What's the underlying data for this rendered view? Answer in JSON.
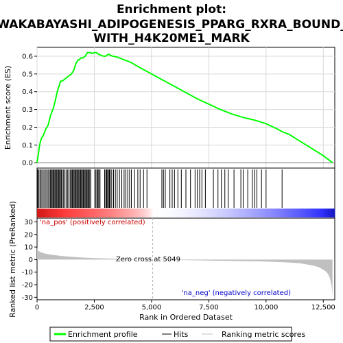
{
  "chart_data": {
    "type": "line",
    "title_lines": [
      "Enrichment plot:",
      "WAKABAYASHI_ADIPOGENESIS_PPARG_RXRA_BOUND_",
      "WITH_H4K20ME1_MARK"
    ],
    "xlabel": "Rank in Ordered Dataset",
    "xlim": [
      0,
      13000
    ],
    "x_ticks": [
      0,
      2500,
      5000,
      7500,
      10000,
      12500
    ],
    "x_tick_labels": [
      "0",
      "2,500",
      "5,000",
      "7,500",
      "10,000",
      "12,500"
    ],
    "es_panel": {
      "ylabel": "Enrichment score (ES)",
      "ylim": [
        -0.03,
        0.65
      ],
      "y_ticks": [
        0.0,
        0.1,
        0.2,
        0.3,
        0.4,
        0.5,
        0.6
      ],
      "y_tick_labels": [
        "0.0",
        "0.1",
        "0.2",
        "0.3",
        "0.4",
        "0.5",
        "0.6"
      ],
      "grid": true,
      "series_color": "#00ff00",
      "x": [
        0,
        60,
        100,
        150,
        200,
        260,
        320,
        380,
        430,
        480,
        540,
        600,
        660,
        720,
        780,
        830,
        880,
        930,
        980,
        1030,
        1100,
        1200,
        1300,
        1400,
        1500,
        1600,
        1650,
        1700,
        1750,
        1800,
        1850,
        1900,
        2000,
        2100,
        2150,
        2200,
        2250,
        2300,
        2350,
        2400,
        2500,
        2600,
        2700,
        2800,
        2900,
        3000,
        3050,
        3100,
        3150,
        3200,
        3300,
        3500,
        3700,
        3900,
        4100,
        4500,
        5000,
        5500,
        6000,
        6500,
        7000,
        7500,
        8000,
        8500,
        9000,
        9500,
        10000,
        10500,
        10700,
        11000,
        11500,
        12000,
        12500,
        12900
      ],
      "y": [
        0.0,
        0.05,
        0.09,
        0.12,
        0.14,
        0.15,
        0.17,
        0.19,
        0.2,
        0.21,
        0.24,
        0.27,
        0.29,
        0.31,
        0.34,
        0.37,
        0.4,
        0.42,
        0.44,
        0.46,
        0.46,
        0.47,
        0.48,
        0.49,
        0.5,
        0.52,
        0.54,
        0.56,
        0.57,
        0.58,
        0.58,
        0.59,
        0.59,
        0.6,
        0.61,
        0.62,
        0.62,
        0.62,
        0.62,
        0.615,
        0.62,
        0.62,
        0.61,
        0.605,
        0.6,
        0.6,
        0.605,
        0.61,
        0.61,
        0.605,
        0.6,
        0.595,
        0.585,
        0.575,
        0.565,
        0.535,
        0.5,
        0.465,
        0.43,
        0.395,
        0.36,
        0.33,
        0.3,
        0.275,
        0.255,
        0.24,
        0.22,
        0.19,
        0.175,
        0.16,
        0.12,
        0.08,
        0.04,
        0.0
      ]
    },
    "hits_panel": {
      "hit_ranks": [
        30,
        80,
        130,
        180,
        240,
        300,
        360,
        420,
        480,
        530,
        580,
        620,
        660,
        700,
        740,
        780,
        820,
        860,
        900,
        940,
        980,
        1020,
        1060,
        1100,
        1160,
        1220,
        1280,
        1340,
        1400,
        1460,
        1500,
        1540,
        1580,
        1620,
        1660,
        1700,
        1740,
        1780,
        1820,
        1860,
        1900,
        1940,
        1980,
        2020,
        2060,
        2100,
        2140,
        2180,
        2220,
        2260,
        2300,
        2350,
        2520,
        2570,
        2620,
        2660,
        2700,
        2750,
        2950,
        3000,
        3040,
        3080,
        3120,
        3160,
        3200,
        3260,
        3340,
        3420,
        3500,
        3600,
        3700,
        3800,
        3880,
        3960,
        4040,
        4120,
        4260,
        4400,
        4500,
        4650,
        4800,
        5450,
        5520,
        5600,
        5800,
        5900,
        6000,
        6150,
        6300,
        6500,
        6700,
        6900,
        7000,
        7100,
        7200,
        7350,
        7700,
        7900,
        8050,
        8200,
        8350,
        8600,
        8900,
        9000,
        9200,
        9400,
        9500,
        9600,
        9800,
        10000,
        10700
      ]
    },
    "metric_panel": {
      "ylabel": "Ranked list metric (PreRanked)",
      "ylim": [
        -32,
        33
      ],
      "y_ticks": [
        -30,
        -20,
        -10,
        0,
        10,
        20,
        30
      ],
      "y_tick_labels": [
        "-30",
        "-20",
        "-10",
        "0",
        "10",
        "20",
        "30"
      ],
      "x": [
        0,
        50,
        150,
        300,
        600,
        1000,
        1500,
        2000,
        2500,
        3000,
        4000,
        5049,
        6000,
        7000,
        8000,
        9000,
        10000,
        10500,
        11000,
        11500,
        12000,
        12300,
        12500,
        12650,
        12750,
        12820,
        12870,
        12900
      ],
      "y": [
        9,
        7,
        6,
        5,
        4,
        3,
        2.2,
        1.6,
        1.2,
        0.9,
        0.4,
        0,
        -0.3,
        -0.6,
        -0.9,
        -1.2,
        -1.6,
        -1.9,
        -2.3,
        -3,
        -4.5,
        -6,
        -8,
        -10,
        -13,
        -17,
        -22,
        -29
      ],
      "zero_cross_rank": 5049,
      "zero_cross_label": "Zero cross at 5049",
      "pos_label": "'na_pos' (positively correlated)",
      "neg_label": "'na_neg' (negatively correlated)",
      "pos_color": "#cc0000",
      "neg_color": "#0000cc"
    },
    "legend": {
      "placement": "bottom",
      "items": [
        {
          "label": "Enrichment profile",
          "color": "#00ff00",
          "kind": "line"
        },
        {
          "label": "Hits",
          "color": "#000000",
          "kind": "line"
        },
        {
          "label": "Ranking metric scores",
          "color": "#c0c0c0",
          "kind": "line"
        }
      ]
    }
  }
}
